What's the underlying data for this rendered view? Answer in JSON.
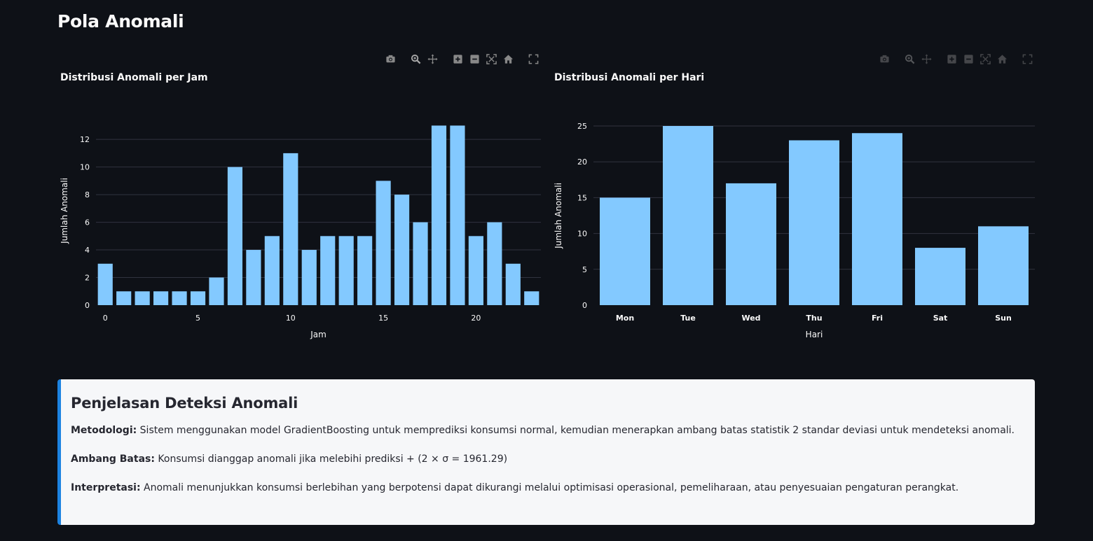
{
  "page": {
    "title": "Pola Anomali"
  },
  "colors": {
    "bar": "#83c9ff",
    "background": "#0e1117",
    "grid": "#31333f",
    "accent": "#1c83e1"
  },
  "modebar": [
    "camera-icon",
    "zoom-icon",
    "pan-icon",
    "zoom-in-icon",
    "zoom-out-icon",
    "autoscale-icon",
    "reset-axes-icon",
    "fullscreen-icon"
  ],
  "chart_data": [
    {
      "type": "bar",
      "title": "Distribusi Anomali per Jam",
      "xlabel": "Jam",
      "ylabel": "Jumlah Anomali",
      "x": [
        0,
        1,
        2,
        3,
        4,
        5,
        6,
        7,
        8,
        9,
        10,
        11,
        12,
        13,
        14,
        15,
        16,
        17,
        18,
        19,
        20,
        21,
        22,
        23
      ],
      "values": [
        3,
        1,
        1,
        1,
        1,
        1,
        2,
        10,
        4,
        5,
        11,
        4,
        5,
        5,
        5,
        9,
        8,
        6,
        13,
        13,
        5,
        6,
        3,
        1
      ],
      "xticks": [
        0,
        5,
        10,
        15,
        20
      ],
      "yticks": [
        0,
        2,
        4,
        6,
        8,
        10,
        12
      ],
      "ylim": [
        0,
        13.68
      ],
      "xlim": [
        -0.5,
        23.5
      ],
      "grid": true
    },
    {
      "type": "bar",
      "title": "Distribusi Anomali per Hari",
      "xlabel": "Hari",
      "ylabel": "Jumlah Anomali",
      "categories": [
        "Mon",
        "Tue",
        "Wed",
        "Thu",
        "Fri",
        "Sat",
        "Sun"
      ],
      "values": [
        15,
        25,
        17,
        23,
        24,
        8,
        11
      ],
      "yticks": [
        0,
        5,
        10,
        15,
        20,
        25
      ],
      "ylim": [
        0,
        25
      ],
      "grid": true
    }
  ],
  "info": {
    "title": "Penjelasan Deteksi Anomali",
    "items": [
      {
        "label": "Metodologi:",
        "text": "Sistem menggunakan model GradientBoosting untuk memprediksi konsumsi normal, kemudian menerapkan ambang batas statistik 2 standar deviasi untuk mendeteksi anomali."
      },
      {
        "label": "Ambang Batas:",
        "text": "Konsumsi dianggap anomali jika melebihi prediksi + (2 × σ = 1961.29)"
      },
      {
        "label": "Interpretasi:",
        "text": "Anomali menunjukkan konsumsi berlebihan yang berpotensi dapat dikurangi melalui optimisasi operasional, pemeliharaan, atau penyesuaian pengaturan perangkat."
      }
    ]
  }
}
